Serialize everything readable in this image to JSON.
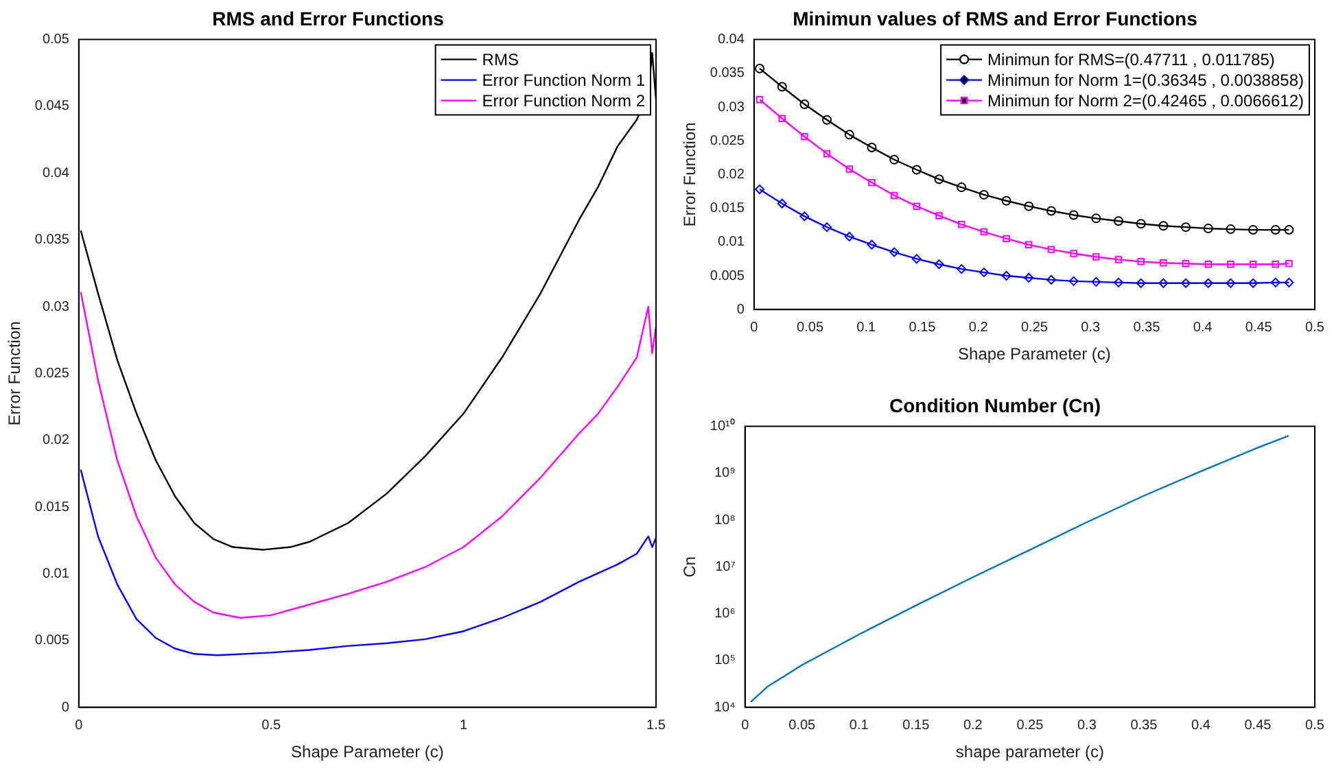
{
  "chart_data": [
    {
      "type": "line",
      "title": "RMS and Error Functions",
      "xlabel": "Shape Parameter (c)",
      "ylabel": "Error Function",
      "xlim": [
        0,
        1.5
      ],
      "xticks": [
        0,
        0.5,
        1,
        1.5
      ],
      "ylim": [
        0,
        0.05
      ],
      "yticks": [
        0,
        0.005,
        0.01,
        0.015,
        0.02,
        0.025,
        0.03,
        0.035,
        0.04,
        0.045,
        0.05
      ],
      "grid": false,
      "legend": "top right",
      "marker": "none",
      "line_style": "solid",
      "series": [
        {
          "name": "RMS",
          "color": "#000000",
          "x": [
            0.005,
            0.05,
            0.1,
            0.15,
            0.2,
            0.25,
            0.3,
            0.35,
            0.4,
            0.48,
            0.55,
            0.6,
            0.7,
            0.8,
            0.9,
            1.0,
            1.1,
            1.2,
            1.3,
            1.35,
            1.4,
            1.45,
            1.48,
            1.49,
            1.5
          ],
          "values": [
            0.0357,
            0.031,
            0.026,
            0.022,
            0.0185,
            0.0158,
            0.0138,
            0.0126,
            0.012,
            0.0118,
            0.012,
            0.0124,
            0.0138,
            0.016,
            0.0188,
            0.022,
            0.0262,
            0.031,
            0.0365,
            0.039,
            0.042,
            0.044,
            0.046,
            0.049,
            0.0455
          ]
        },
        {
          "name": "Error Function Norm 1",
          "color": "#0000ff",
          "x": [
            0.005,
            0.05,
            0.1,
            0.15,
            0.2,
            0.25,
            0.3,
            0.36,
            0.5,
            0.6,
            0.7,
            0.8,
            0.9,
            1.0,
            1.1,
            1.2,
            1.3,
            1.4,
            1.45,
            1.48,
            1.49,
            1.5
          ],
          "values": [
            0.0178,
            0.0128,
            0.0092,
            0.0066,
            0.0052,
            0.0044,
            0.004,
            0.0039,
            0.0041,
            0.0043,
            0.0046,
            0.0048,
            0.0051,
            0.0057,
            0.0067,
            0.0079,
            0.0094,
            0.0107,
            0.0115,
            0.0128,
            0.012,
            0.0127
          ]
        },
        {
          "name": "Error Function Norm 2",
          "color": "#ff00ff",
          "x": [
            0.005,
            0.05,
            0.1,
            0.15,
            0.2,
            0.25,
            0.3,
            0.35,
            0.42,
            0.5,
            0.6,
            0.7,
            0.8,
            0.9,
            1.0,
            1.1,
            1.2,
            1.3,
            1.35,
            1.4,
            1.45,
            1.48,
            1.49,
            1.5
          ],
          "values": [
            0.0311,
            0.0245,
            0.0185,
            0.0143,
            0.0112,
            0.0092,
            0.0079,
            0.0071,
            0.0067,
            0.0069,
            0.0077,
            0.0085,
            0.0094,
            0.0105,
            0.012,
            0.0143,
            0.0172,
            0.0205,
            0.022,
            0.024,
            0.0262,
            0.03,
            0.0265,
            0.0285
          ]
        }
      ]
    },
    {
      "type": "line",
      "title": "Minimun values of RMS and Error Functions",
      "xlabel": "Shape Parameter (c)",
      "ylabel": "Error Function",
      "xlim": [
        0,
        0.5
      ],
      "xticks": [
        0,
        0.05,
        0.1,
        0.15,
        0.2,
        0.25,
        0.3,
        0.35,
        0.4,
        0.45,
        0.5
      ],
      "ylim": [
        0,
        0.04
      ],
      "yticks": [
        0,
        0.005,
        0.01,
        0.015,
        0.02,
        0.025,
        0.03,
        0.035,
        0.04
      ],
      "grid": false,
      "legend": "top right",
      "line_style": "solid",
      "x": [
        0.005,
        0.025,
        0.045,
        0.065,
        0.085,
        0.105,
        0.125,
        0.145,
        0.165,
        0.185,
        0.205,
        0.225,
        0.245,
        0.265,
        0.285,
        0.305,
        0.325,
        0.345,
        0.365,
        0.385,
        0.405,
        0.425,
        0.445,
        0.465,
        0.477
      ],
      "series": [
        {
          "name": "Minimun for RMS=(0.47711 , 0.011785)",
          "color": "#000000",
          "marker": "circle",
          "values": [
            0.0357,
            0.033,
            0.0304,
            0.0281,
            0.0259,
            0.024,
            0.0222,
            0.0207,
            0.0193,
            0.0181,
            0.017,
            0.0161,
            0.0153,
            0.0146,
            0.014,
            0.0135,
            0.0131,
            0.0127,
            0.0124,
            0.0122,
            0.012,
            0.0119,
            0.0118,
            0.0118,
            0.0118
          ]
        },
        {
          "name": "Minimun for Norm 1=(0.36345 , 0.0038858)",
          "color": "#0000ff",
          "marker": "diamond",
          "values": [
            0.0178,
            0.0157,
            0.0138,
            0.0122,
            0.0108,
            0.0096,
            0.0085,
            0.0075,
            0.0067,
            0.006,
            0.0055,
            0.005,
            0.0047,
            0.0044,
            0.0042,
            0.0041,
            0.004,
            0.0039,
            0.0039,
            0.0039,
            0.0039,
            0.0039,
            0.0039,
            0.004,
            0.004
          ]
        },
        {
          "name": "Minimun for Norm 2=(0.42465 , 0.0066612)",
          "color": "#ff00ff",
          "marker": "square",
          "values": [
            0.0311,
            0.0283,
            0.0256,
            0.0231,
            0.0208,
            0.0188,
            0.0169,
            0.0153,
            0.0139,
            0.0126,
            0.0115,
            0.0105,
            0.0096,
            0.0089,
            0.0083,
            0.0078,
            0.0074,
            0.0071,
            0.0069,
            0.0068,
            0.0067,
            0.0067,
            0.0067,
            0.0067,
            0.0068
          ]
        }
      ]
    },
    {
      "type": "line",
      "title": "Condition Number (Cn)",
      "xlabel": "shape parameter (c)",
      "ylabel": "Cn",
      "log": "y",
      "xlim": [
        0,
        0.5
      ],
      "xticks": [
        0,
        0.05,
        0.1,
        0.15,
        0.2,
        0.25,
        0.3,
        0.35,
        0.4,
        0.45,
        0.5
      ],
      "ylim": [
        10000,
        10000000000
      ],
      "yticks": [
        {
          "value": 10000,
          "label": "10⁴"
        },
        {
          "value": 100000,
          "label": "10⁵"
        },
        {
          "value": 1000000,
          "label": "10⁶"
        },
        {
          "value": 10000000,
          "label": "10⁷"
        },
        {
          "value": 100000000,
          "label": "10⁸"
        },
        {
          "value": 1000000000,
          "label": "10⁹"
        },
        {
          "value": 10000000000,
          "label": "10¹⁰"
        }
      ],
      "grid": false,
      "marker": "none",
      "line_style": "solid",
      "x": [
        0.005,
        0.02,
        0.05,
        0.075,
        0.1,
        0.15,
        0.2,
        0.25,
        0.3,
        0.35,
        0.4,
        0.45,
        0.477
      ],
      "series": [
        {
          "color": "#0072bd",
          "values": [
            13000,
            28000,
            80000,
            170000,
            360000,
            1500000,
            6000000,
            23000000,
            90000000,
            330000000,
            1100000000,
            3500000000,
            6300000000
          ]
        }
      ]
    }
  ]
}
